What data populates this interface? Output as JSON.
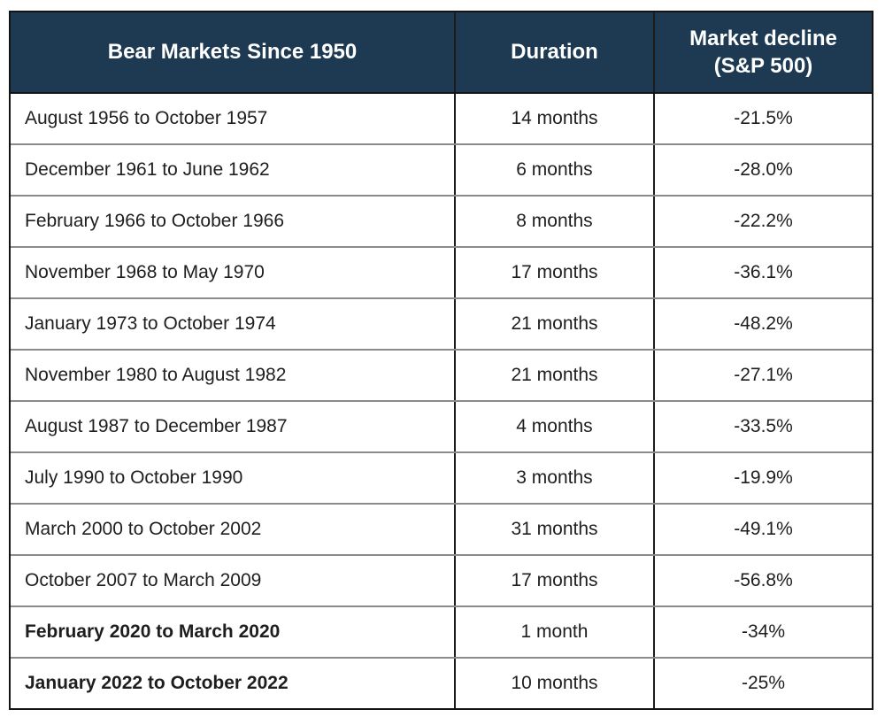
{
  "chart_data": {
    "type": "table",
    "title": "Bear Markets Since 1950",
    "columns": [
      "Bear Markets Since 1950",
      "Duration",
      "Market decline (S&P 500)"
    ],
    "rows": [
      [
        "August 1956 to October 1957",
        "14 months",
        "-21.5%"
      ],
      [
        "December 1961 to June 1962",
        "6 months",
        "-28.0%"
      ],
      [
        "February 1966 to October 1966",
        "8 months",
        "-22.2%"
      ],
      [
        "November 1968 to May 1970",
        "17 months",
        "-36.1%"
      ],
      [
        "January 1973 to October 1974",
        "21 months",
        "-48.2%"
      ],
      [
        "November 1980 to August 1982",
        "21 months",
        "-27.1%"
      ],
      [
        "August 1987 to December 1987",
        "4 months",
        "-33.5%"
      ],
      [
        "July 1990 to October 1990",
        "3 months",
        "-19.9%"
      ],
      [
        "March 2000 to October 2002",
        "31 months",
        "-49.1%"
      ],
      [
        "October 2007 to March 2009",
        "17 months",
        "-56.8%"
      ],
      [
        "February 2020 to March 2020",
        "1 month",
        "-34%"
      ],
      [
        "January 2022 to October 2022",
        "10 months",
        "-25%"
      ]
    ],
    "durations_months": [
      14,
      6,
      8,
      17,
      21,
      21,
      4,
      3,
      31,
      17,
      1,
      10
    ],
    "declines_pct": [
      -21.5,
      -28.0,
      -22.2,
      -36.1,
      -48.2,
      -27.1,
      -33.5,
      -19.9,
      -49.1,
      -56.8,
      -34,
      -25
    ]
  },
  "header": {
    "col1": "Bear Markets Since 1950",
    "col2": "Duration",
    "col3_line1": "Market decline",
    "col3_line2": "(S&P 500)"
  },
  "colors": {
    "header_bg": "#1d3a52",
    "header_text": "#ffffff",
    "body_text": "#1e1e1e",
    "row_divider": "#8b8b8b",
    "column_divider": "#1c1c1c",
    "outer_border": "#141414",
    "page_background": "#ffffff"
  }
}
